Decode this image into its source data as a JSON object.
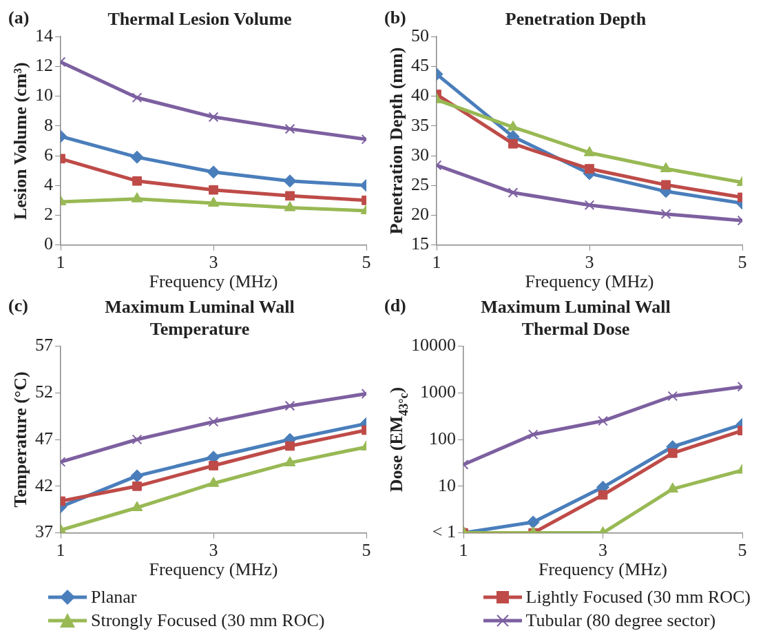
{
  "chart_data": [
    {
      "type": "line",
      "title": "Thermal Lesion Volume",
      "xlabel": "Frequency (MHz)",
      "ylabel": "Lesion Volume (cm³)",
      "annotations": [
        "(a)"
      ],
      "x": [
        1,
        2,
        3,
        4,
        5
      ],
      "xlim": [
        1,
        5
      ],
      "xticks": [
        1,
        3,
        5
      ],
      "ylim": [
        0,
        14
      ],
      "yticks": [
        0,
        2,
        4,
        6,
        8,
        10,
        12,
        14
      ],
      "grid": false,
      "legend": "bottom",
      "series": [
        {
          "name": "Planar",
          "color": "#4a7ebb",
          "marker": "diamond",
          "values": [
            7.3,
            5.9,
            4.9,
            4.3,
            4.0
          ]
        },
        {
          "name": "Lightly Focused (30 mm ROC)",
          "color": "#be4b48",
          "marker": "square",
          "values": [
            5.8,
            4.3,
            3.7,
            3.3,
            3.0
          ]
        },
        {
          "name": "Strongly Focused (30 mm ROC)",
          "color": "#98b954",
          "marker": "triangle",
          "values": [
            2.9,
            3.1,
            2.8,
            2.5,
            2.3
          ]
        },
        {
          "name": "Tubular (80 degree sector)",
          "color": "#7d60a0",
          "marker": "cross",
          "values": [
            12.3,
            9.9,
            8.6,
            7.8,
            7.1
          ]
        }
      ]
    },
    {
      "type": "line",
      "title": "Penetration Depth",
      "xlabel": "Frequency (MHz)",
      "ylabel": "Penetration Depth (mm)",
      "annotations": [
        "(b)"
      ],
      "x": [
        1,
        2,
        3,
        4,
        5
      ],
      "xlim": [
        1,
        5
      ],
      "xticks": [
        1,
        3,
        5
      ],
      "ylim": [
        15,
        50
      ],
      "yticks": [
        15,
        20,
        25,
        30,
        35,
        40,
        45,
        50
      ],
      "grid": false,
      "series": [
        {
          "color": "#4a7ebb",
          "marker": "diamond",
          "values": [
            43.7,
            33.2,
            27,
            24,
            22
          ]
        },
        {
          "color": "#be4b48",
          "marker": "square",
          "values": [
            40.3,
            32,
            27.8,
            25.1,
            23
          ]
        },
        {
          "color": "#98b954",
          "marker": "triangle",
          "values": [
            39.4,
            34.8,
            30.5,
            27.8,
            25.5
          ]
        },
        {
          "color": "#7d60a0",
          "marker": "cross",
          "values": [
            28.4,
            23.8,
            21.7,
            20.2,
            19.1
          ]
        }
      ]
    },
    {
      "type": "line",
      "title": "Maximum Luminal Wall Temperature",
      "xlabel": "Frequency (MHz)",
      "ylabel": "Temperature (°C)",
      "annotations": [
        "(c)"
      ],
      "x": [
        1,
        2,
        3,
        4,
        5
      ],
      "xlim": [
        1,
        5
      ],
      "xticks": [
        1,
        3,
        5
      ],
      "ylim": [
        37,
        57
      ],
      "yticks": [
        37,
        42,
        47,
        52,
        57
      ],
      "grid": false,
      "series": [
        {
          "color": "#4a7ebb",
          "marker": "diamond",
          "values": [
            39.8,
            43.1,
            45.1,
            47.0,
            48.7
          ]
        },
        {
          "color": "#be4b48",
          "marker": "square",
          "values": [
            40.4,
            42.0,
            44.2,
            46.3,
            48.0
          ]
        },
        {
          "color": "#98b954",
          "marker": "triangle",
          "values": [
            37.3,
            39.7,
            42.3,
            44.5,
            46.2
          ]
        },
        {
          "color": "#7d60a0",
          "marker": "cross",
          "values": [
            44.6,
            47.0,
            48.9,
            50.6,
            51.9
          ]
        }
      ]
    },
    {
      "type": "line",
      "title": "Maximum Luminal Wall Thermal Dose",
      "xlabel": "Frequency (MHz)",
      "ylabel": "Dose (EM$_{43°c}$)",
      "annotations": [
        "(d)"
      ],
      "x": [
        1,
        2,
        3,
        4,
        5
      ],
      "xlim": [
        1,
        5
      ],
      "xticks": [
        1,
        3,
        5
      ],
      "log": "y",
      "ylim": [
        1,
        10000
      ],
      "yticks": [
        {
          "value": 1,
          "label": "< 1"
        },
        10,
        100,
        1000,
        10000
      ],
      "grid": false,
      "series": [
        {
          "color": "#4a7ebb",
          "marker": "diamond",
          "values": [
            1,
            1.7,
            9.5,
            70,
            210
          ]
        },
        {
          "color": "#be4b48",
          "marker": "square",
          "values": [
            1,
            1,
            6.5,
            51,
            155
          ]
        },
        {
          "color": "#98b954",
          "marker": "triangle",
          "values": [
            1,
            1,
            1,
            8.7,
            22
          ]
        },
        {
          "color": "#7d60a0",
          "marker": "cross",
          "values": [
            29,
            128,
            250,
            850,
            1350
          ]
        }
      ]
    }
  ]
}
